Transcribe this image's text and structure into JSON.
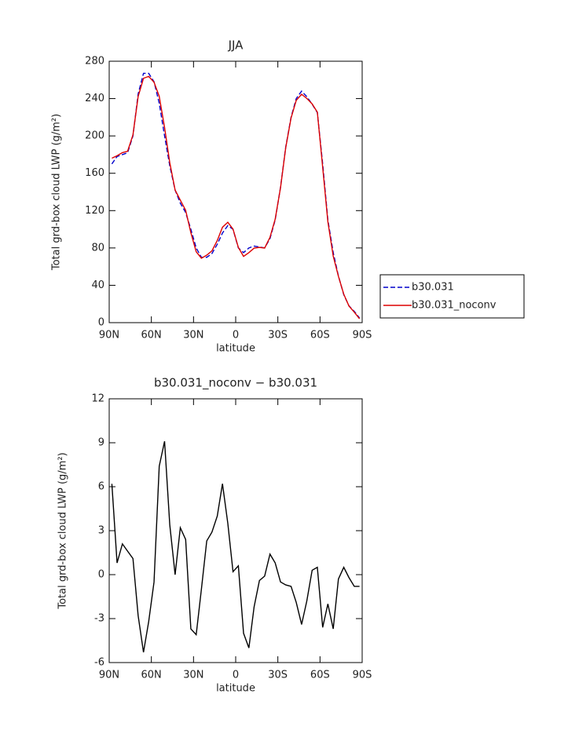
{
  "chart_data": [
    {
      "type": "line",
      "title": "JJA",
      "xlabel": "latitude",
      "ylabel": "Total grd-box cloud LWP (g/m²)",
      "x": [
        88.1,
        84.4,
        80.6,
        76.9,
        73.1,
        69.4,
        65.6,
        61.9,
        58.1,
        54.4,
        50.6,
        46.9,
        43.1,
        39.4,
        35.6,
        31.9,
        28.1,
        24.4,
        20.6,
        16.9,
        13.1,
        9.4,
        5.6,
        1.9,
        -1.9,
        -5.6,
        -9.4,
        -13.1,
        -16.9,
        -20.6,
        -24.4,
        -28.1,
        -31.9,
        -35.6,
        -39.4,
        -43.1,
        -46.9,
        -50.6,
        -54.4,
        -58.1,
        -61.9,
        -65.6,
        -69.4,
        -73.1,
        -76.9,
        -80.6,
        -84.4,
        -88.1
      ],
      "series": [
        {
          "name": "b30.031",
          "color": "#0000cc",
          "style": "dashed",
          "values": [
            170,
            178,
            180,
            182,
            200,
            245,
            267,
            267,
            258,
            235,
            200,
            168,
            142,
            128,
            118,
            100,
            80,
            70,
            70,
            74,
            84,
            96,
            104,
            100,
            80,
            75,
            80,
            82,
            81,
            80,
            90,
            110,
            145,
            188,
            220,
            240,
            248,
            242,
            234,
            225,
            170,
            110,
            75,
            50,
            30,
            18,
            12,
            5
          ]
        },
        {
          "name": "b30.031_noconv",
          "color": "#dd0000",
          "style": "solid",
          "values": [
            176.2,
            178.8,
            182.1,
            183.6,
            201.1,
            242.2,
            261.7,
            263.8,
            257.5,
            242.4,
            209.1,
            171.4,
            142,
            131.2,
            120.4,
            96.3,
            75.9,
            69,
            72.3,
            76.9,
            88,
            102.2,
            107.5,
            100.2,
            80.6,
            71,
            75,
            79.8,
            80.6,
            79.9,
            91.4,
            110.8,
            144.5,
            187.3,
            219.2,
            238.1,
            244.6,
            240.2,
            234.3,
            225.5,
            166.4,
            108,
            71.3,
            49.7,
            30.5,
            17.8,
            11.2,
            4.2
          ]
        }
      ],
      "xlim": [
        90,
        -90
      ],
      "xticks": [
        {
          "value": 90,
          "label": "90N"
        },
        {
          "value": 60,
          "label": "60N"
        },
        {
          "value": 30,
          "label": "30N"
        },
        0,
        {
          "value": -30,
          "label": "30S"
        },
        {
          "value": -60,
          "label": "60S"
        },
        {
          "value": -90,
          "label": "90S"
        }
      ],
      "ylim": [
        0,
        280
      ],
      "yticks": [
        0,
        40,
        80,
        120,
        160,
        200,
        240,
        280
      ],
      "legend": "right"
    },
    {
      "type": "line",
      "title": "b30.031_noconv − b30.031",
      "xlabel": "latitude",
      "ylabel": "Total grd-box cloud LWP (g/m²)",
      "x": [
        88.1,
        84.4,
        80.6,
        76.9,
        73.1,
        69.4,
        65.6,
        61.9,
        58.1,
        54.4,
        50.6,
        46.9,
        43.1,
        39.4,
        35.6,
        31.9,
        28.1,
        24.4,
        20.6,
        16.9,
        13.1,
        9.4,
        5.6,
        1.9,
        -1.9,
        -5.6,
        -9.4,
        -13.1,
        -16.9,
        -20.6,
        -24.4,
        -28.1,
        -31.9,
        -35.6,
        -39.4,
        -43.1,
        -46.9,
        -50.6,
        -54.4,
        -58.1,
        -61.9,
        -65.6,
        -69.4,
        -73.1,
        -76.9,
        -80.6,
        -84.4,
        -88.1
      ],
      "series": [
        {
          "color": "#000000",
          "style": "solid",
          "values": [
            6.2,
            0.8,
            2.1,
            1.6,
            1.1,
            -2.8,
            -5.3,
            -3.2,
            -0.5,
            7.4,
            9.1,
            3.4,
            0.0,
            3.2,
            2.4,
            -3.7,
            -4.1,
            -1.0,
            2.3,
            2.9,
            4.0,
            6.2,
            3.5,
            0.2,
            0.6,
            -4.0,
            -5.0,
            -2.2,
            -0.4,
            -0.1,
            1.4,
            0.8,
            -0.5,
            -0.7,
            -0.8,
            -1.9,
            -3.4,
            -1.8,
            0.3,
            0.5,
            -3.6,
            -2.0,
            -3.7,
            -0.3,
            0.5,
            -0.2,
            -0.8,
            -0.8
          ]
        }
      ],
      "xlim": [
        90,
        -90
      ],
      "xticks": [
        {
          "value": 90,
          "label": "90N"
        },
        {
          "value": 60,
          "label": "60N"
        },
        {
          "value": 30,
          "label": "30N"
        },
        0,
        {
          "value": -30,
          "label": "30S"
        },
        {
          "value": -60,
          "label": "60S"
        },
        {
          "value": -90,
          "label": "90S"
        }
      ],
      "ylim": [
        -6,
        12
      ],
      "yticks": [
        -6,
        -3,
        0,
        3,
        6,
        9,
        12
      ]
    }
  ]
}
